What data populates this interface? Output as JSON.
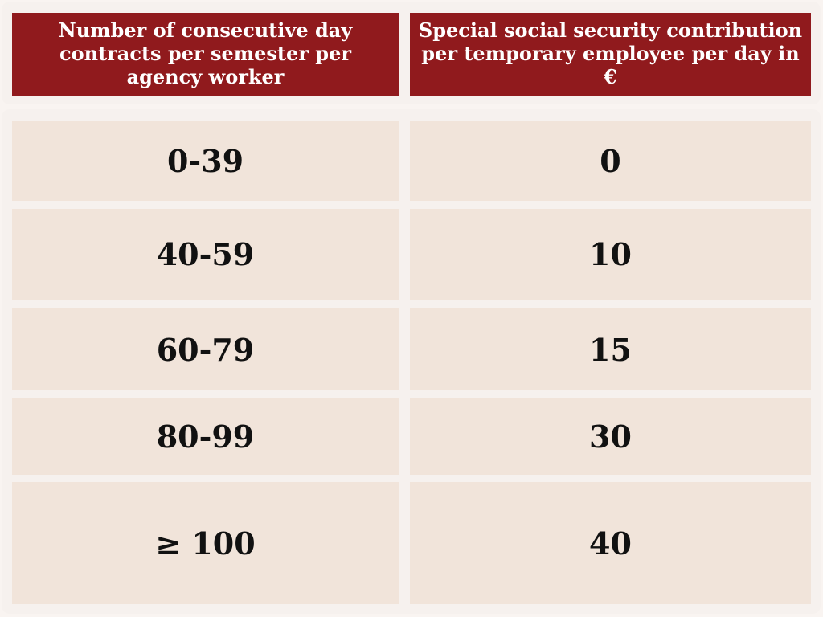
{
  "chart_data": {
    "type": "table",
    "columns": [
      "Number of consecutive day contracts per semester per agency worker",
      "Special social security contribution per temporary employee per day in €"
    ],
    "rows": [
      [
        "0-39",
        "0"
      ],
      [
        "40-59",
        "10"
      ],
      [
        "60-79",
        "15"
      ],
      [
        "80-99",
        "30"
      ],
      [
        "≥ 100",
        "40"
      ]
    ]
  },
  "colors": {
    "header_bg": "#901a1d",
    "header_text": "#ffffff",
    "cell_bg": "#f1e4da",
    "page_bg": "#f6f1ee"
  }
}
